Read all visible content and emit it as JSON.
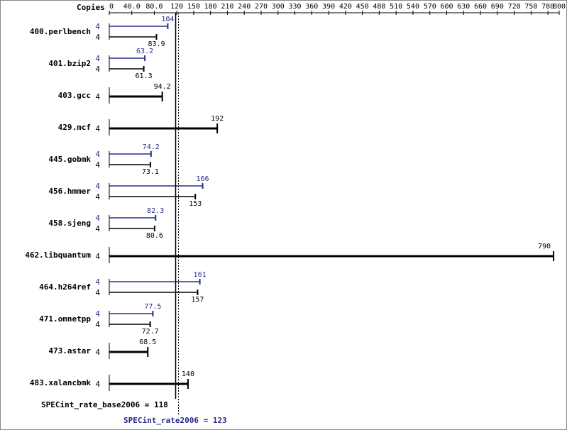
{
  "chart_data": {
    "type": "bar",
    "orientation": "horizontal",
    "axis_title": "Copies",
    "xlim": [
      0,
      800
    ],
    "ticks": [
      "0",
      "40.0",
      "80.0",
      "120",
      "150",
      "180",
      "210",
      "240",
      "270",
      "300",
      "330",
      "360",
      "390",
      "420",
      "450",
      "480",
      "510",
      "540",
      "570",
      "600",
      "630",
      "660",
      "690",
      "720",
      "750",
      "780",
      "800"
    ],
    "tick_values": [
      0,
      40,
      80,
      120,
      150,
      180,
      210,
      240,
      270,
      300,
      330,
      360,
      390,
      420,
      450,
      480,
      510,
      540,
      570,
      600,
      630,
      660,
      690,
      720,
      750,
      780,
      800
    ],
    "categories": [
      {
        "name": "400.perlbench",
        "peak": {
          "copies": "4",
          "value": 104
        },
        "base": {
          "copies": "4",
          "value": 83.9
        }
      },
      {
        "name": "401.bzip2",
        "peak": {
          "copies": "4",
          "value": 63.2
        },
        "base": {
          "copies": "4",
          "value": 61.3
        }
      },
      {
        "name": "403.gcc",
        "single": {
          "copies": "4",
          "value": 94.2
        }
      },
      {
        "name": "429.mcf",
        "single": {
          "copies": "4",
          "value": 192
        }
      },
      {
        "name": "445.gobmk",
        "peak": {
          "copies": "4",
          "value": 74.2
        },
        "base": {
          "copies": "4",
          "value": 73.1
        }
      },
      {
        "name": "456.hmmer",
        "peak": {
          "copies": "4",
          "value": 166
        },
        "base": {
          "copies": "4",
          "value": 153
        }
      },
      {
        "name": "458.sjeng",
        "peak": {
          "copies": "4",
          "value": 82.3
        },
        "base": {
          "copies": "4",
          "value": 80.6
        }
      },
      {
        "name": "462.libquantum",
        "single": {
          "copies": "4",
          "value": 790
        }
      },
      {
        "name": "464.h264ref",
        "peak": {
          "copies": "4",
          "value": 161
        },
        "base": {
          "copies": "4",
          "value": 157
        }
      },
      {
        "name": "471.omnetpp",
        "peak": {
          "copies": "4",
          "value": 77.5
        },
        "base": {
          "copies": "4",
          "value": 72.7
        }
      },
      {
        "name": "473.astar",
        "single": {
          "copies": "4",
          "value": 68.5
        }
      },
      {
        "name": "483.xalancbmk",
        "single": {
          "copies": "4",
          "value": 140
        }
      }
    ],
    "base_score": {
      "label": "SPECint_rate_base2006 = 118",
      "value": 118
    },
    "peak_score": {
      "label": "SPECint_rate2006 = 123",
      "value": 123
    },
    "colors": {
      "peak": "#2b2b8f",
      "base": "#000000",
      "grid": "#000000"
    },
    "grid": false
  }
}
